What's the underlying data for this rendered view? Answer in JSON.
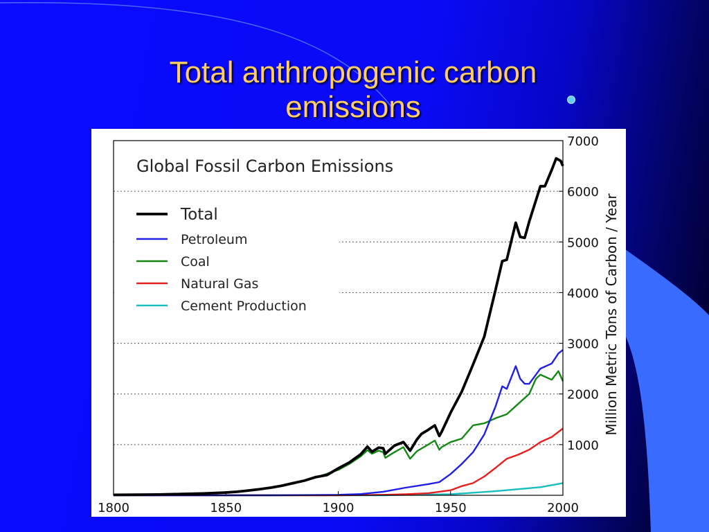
{
  "slide": {
    "title_line1": "Total anthropogenic carbon",
    "title_line2": "emissions",
    "title_color": "#ffcc66",
    "bullet_color": "#66ccff"
  },
  "chart_data": {
    "type": "line",
    "title": "Global Fossil Carbon Emissions",
    "xlabel": "",
    "ylabel": "Million Metric Tons of Carbon / Year",
    "xlim": [
      1800,
      2000
    ],
    "ylim": [
      0,
      7000
    ],
    "x_ticks": [
      1800,
      1850,
      1900,
      1950,
      2000
    ],
    "y_ticks": [
      1000,
      2000,
      3000,
      4000,
      5000,
      6000,
      7000
    ],
    "grid": "horizontal dotted",
    "legend_position": "top-left",
    "series": [
      {
        "name": "Total",
        "color": "#000000",
        "x": [
          1800,
          1810,
          1820,
          1830,
          1840,
          1850,
          1855,
          1860,
          1865,
          1870,
          1875,
          1880,
          1885,
          1890,
          1895,
          1900,
          1905,
          1910,
          1913,
          1915,
          1918,
          1920,
          1921,
          1925,
          1929,
          1932,
          1935,
          1937,
          1940,
          1943,
          1945,
          1946,
          1950,
          1955,
          1960,
          1965,
          1970,
          1973,
          1975,
          1979,
          1981,
          1983,
          1985,
          1990,
          1992,
          1995,
          1997,
          1999,
          2000
        ],
        "y": [
          8,
          12,
          15,
          25,
          35,
          55,
          70,
          95,
          120,
          150,
          190,
          240,
          290,
          360,
          400,
          530,
          650,
          810,
          960,
          860,
          940,
          930,
          820,
          980,
          1050,
          880,
          1100,
          1210,
          1290,
          1380,
          1170,
          1250,
          1630,
          2050,
          2580,
          3130,
          4050,
          4620,
          4650,
          5380,
          5100,
          5080,
          5400,
          6100,
          6100,
          6420,
          6650,
          6600,
          6500
        ]
      },
      {
        "name": "Petroleum",
        "color": "#1f1fe6",
        "x": [
          1800,
          1870,
          1890,
          1900,
          1910,
          1920,
          1930,
          1940,
          1945,
          1950,
          1955,
          1960,
          1965,
          1970,
          1973,
          1975,
          1979,
          1981,
          1983,
          1985,
          1990,
          1995,
          1998,
          2000
        ],
        "y": [
          0,
          0,
          5,
          10,
          25,
          70,
          150,
          220,
          260,
          420,
          620,
          850,
          1200,
          1750,
          2150,
          2100,
          2550,
          2300,
          2200,
          2200,
          2500,
          2600,
          2800,
          2870
        ]
      },
      {
        "name": "Coal",
        "color": "#138813",
        "x": [
          1800,
          1820,
          1840,
          1850,
          1860,
          1870,
          1880,
          1890,
          1900,
          1905,
          1910,
          1913,
          1915,
          1918,
          1920,
          1921,
          1925,
          1929,
          1932,
          1935,
          1940,
          1943,
          1945,
          1946,
          1950,
          1955,
          1960,
          1965,
          1970,
          1975,
          1980,
          1985,
          1988,
          1990,
          1995,
          1998,
          2000
        ],
        "y": [
          8,
          15,
          35,
          55,
          95,
          150,
          230,
          350,
          500,
          620,
          770,
          890,
          820,
          880,
          850,
          740,
          850,
          950,
          720,
          870,
          1000,
          1080,
          900,
          950,
          1050,
          1120,
          1380,
          1420,
          1520,
          1600,
          1800,
          2000,
          2300,
          2380,
          2280,
          2450,
          2250
        ]
      },
      {
        "name": "Natural Gas",
        "color": "#e61e1e",
        "x": [
          1800,
          1900,
          1920,
          1930,
          1940,
          1950,
          1955,
          1960,
          1965,
          1970,
          1975,
          1980,
          1985,
          1990,
          1995,
          2000
        ],
        "y": [
          0,
          0,
          10,
          20,
          40,
          100,
          180,
          240,
          370,
          540,
          720,
          800,
          900,
          1050,
          1150,
          1320
        ]
      },
      {
        "name": "Cement Production",
        "color": "#17bfbf",
        "x": [
          1800,
          1920,
          1930,
          1940,
          1950,
          1960,
          1970,
          1980,
          1990,
          2000
        ],
        "y": [
          0,
          0,
          10,
          15,
          20,
          50,
          80,
          120,
          160,
          240
        ]
      }
    ]
  }
}
